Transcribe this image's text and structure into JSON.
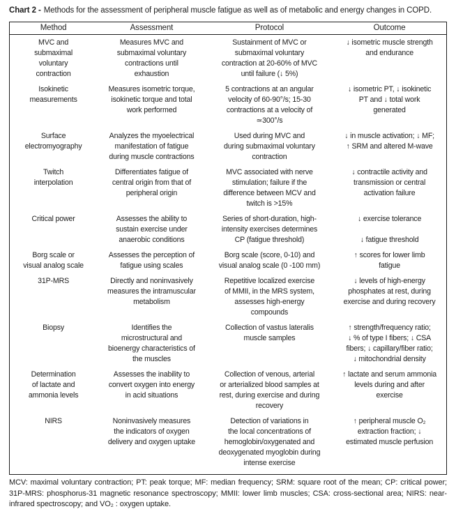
{
  "title": {
    "label": "Chart 2 -",
    "text": "Methods for the assessment of peripheral muscle fatigue as well as of metabolic and energy changes in COPD."
  },
  "table": {
    "headers": [
      "Method",
      "Assessment",
      "Protocol",
      "Outcome"
    ],
    "rows": [
      {
        "method": "MVC and\nsubmaximal\nvoluntary\ncontraction",
        "assessment": "Measures MVC and\nsubmaximal voluntary\ncontractions until\nexhaustion",
        "protocol": "Sustainment of MVC or\nsubmaximal voluntary\ncontraction at 20-60% of MVC\nuntil failure (↓ 5%)",
        "outcome": "↓ isometric muscle strength\nand endurance"
      },
      {
        "method": "Isokinetic\nmeasurements",
        "assessment": "Measures isometric torque,\nisokinetic torque and total\nwork performed",
        "protocol": "5 contractions at an angular\nvelocity of 60-90°/s; 15-30\ncontractions at a velocity of\n≃300°/s",
        "outcome": "↓ isometric PT, ↓ isokinetic\nPT and ↓ total work\ngenerated"
      },
      {
        "method": "Surface\nelectromyography",
        "assessment": "Analyzes the myoelectrical\nmanifestation of fatigue\nduring muscle contractions",
        "protocol": "Used during MVC and\nduring submaximal voluntary\ncontraction",
        "outcome": "↓ in muscle activation; ↓ MF;\n↑ SRM and altered M-wave"
      },
      {
        "method": "Twitch\ninterpolation",
        "assessment": "Differentiates fatigue of\ncentral origin from that of\nperipheral origin",
        "protocol": "MVC associated with nerve\nstimulation; failure if the\ndifference between MCV and\ntwitch is >15%",
        "outcome": "↓ contractile activity and\ntransmission or central\nactivation failure"
      },
      {
        "method": "Critical power",
        "assessment": "Assesses the ability to\nsustain exercise under\nanaerobic conditions",
        "protocol": "Series of short-duration, high-\nintensity exercises determines\nCP (fatigue threshold)",
        "outcome": "↓ exercise tolerance\n\n↓ fatigue threshold"
      },
      {
        "method": "Borg scale or\nvisual analog scale",
        "assessment": "Assesses the perception of\nfatigue using scales",
        "protocol": "Borg scale (score, 0-10) and\nvisual analog scale (0 -100 mm)",
        "outcome": "↑ scores for lower limb\nfatigue"
      },
      {
        "method": "31P-MRS",
        "assessment": "Directly and noninvasively\nmeasures the intramuscular\nmetabolism",
        "protocol": "Repetitive localized exercise\nof MMII, in the MRS system,\nassesses high-energy\ncompounds",
        "outcome": "↓ levels of high-energy\nphosphates at rest, during\nexercise and during recovery"
      },
      {
        "method": "Biopsy",
        "assessment": "Identifies the\nmicrostructural and\nbioenergy characteristics of\nthe muscles",
        "protocol": "Collection of vastus lateralis\nmuscle samples",
        "outcome": "↑ strength/frequency ratio;\n↓ % of type I fibers; ↓ CSA\nfibers; ↓ capillary/fiber ratio;\n↓ mitochondrial density"
      },
      {
        "method": "Determination\nof lactate and\nammonia levels",
        "assessment": "Assesses the inability to\nconvert oxygen into energy\nin acid situations",
        "protocol": "Collection of venous, arterial\nor arterialized blood samples at\nrest, during exercise and during\nrecovery",
        "outcome": "↑ lactate and serum ammonia\nlevels during and after\nexercise"
      },
      {
        "method": "NIRS",
        "assessment": "Noninvasively measures\nthe indicators of oxygen\ndelivery and oxygen uptake",
        "protocol": "Detection of variations in\nthe local concentrations of\nhemoglobin/oxygenated and\ndeoxygenated myoglobin during\nintense exercise",
        "outcome": "↑ peripheral muscle O₂\nextraction fraction; ↓\nestimated muscle perfusion"
      }
    ]
  },
  "footnote": "MCV: maximal voluntary contraction; PT: peak torque; MF: median frequency; SRM: square root of the mean; CP: critical power; 31P-MRS: phosphorus-31 magnetic resonance spectroscopy; MMII: lower limb muscles; CSA: cross-sectional area; NIRS: near-infrared spectroscopy; and VO₂ : oxygen uptake."
}
